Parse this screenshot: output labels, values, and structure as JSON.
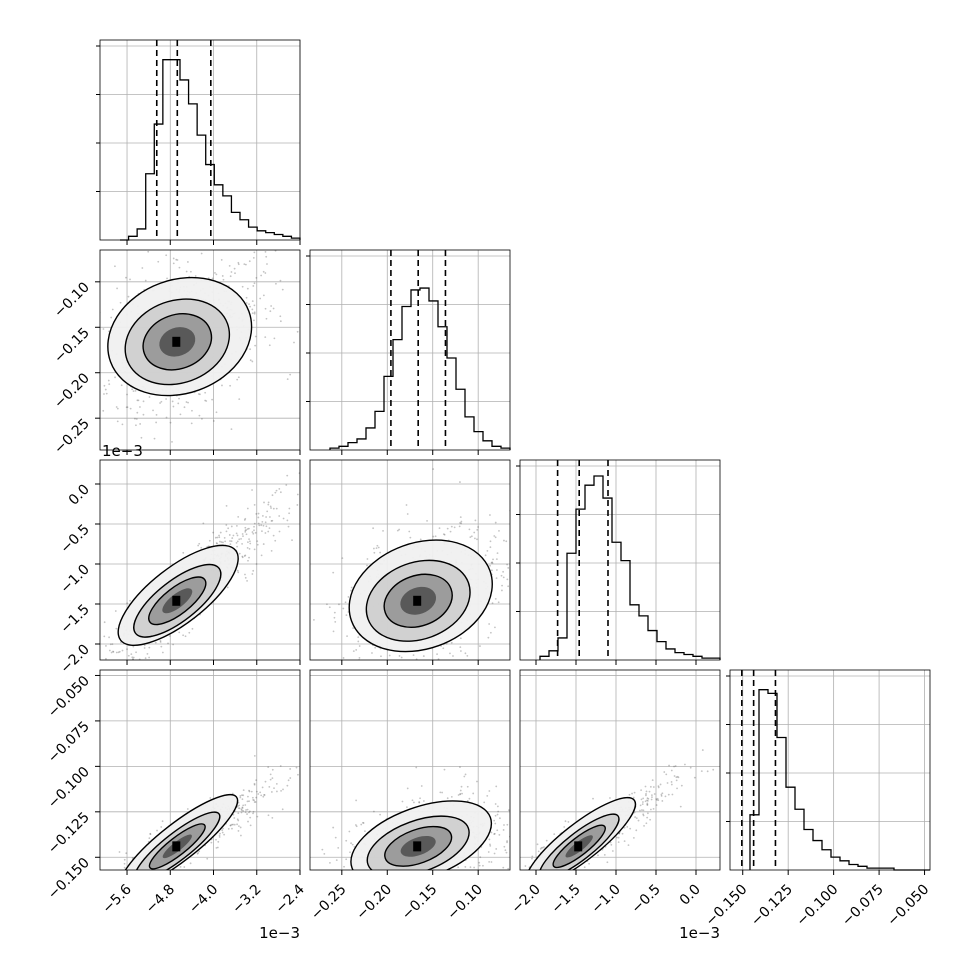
{
  "chart_data": {
    "type": "corner",
    "parameters": [
      {
        "range": [
          -6.1,
          -2.4
        ],
        "ticks": [
          -5.6,
          -4.8,
          -4.0,
          -3.2,
          -2.4
        ],
        "tick_labels": [
          "−5.6",
          "−4.8",
          "−4.0",
          "−3.2",
          "−2.4"
        ],
        "offset_label": "1e−3",
        "quantiles": [
          -5.05,
          -4.67,
          -4.05
        ],
        "histogram": [
          0,
          0.02,
          0.06,
          0.36,
          0.63,
          0.98,
          0.98,
          0.87,
          0.74,
          0.57,
          0.41,
          0.3,
          0.24,
          0.15,
          0.11,
          0.07,
          0.05,
          0.04,
          0.03,
          0.02,
          0.01
        ]
      },
      {
        "range": [
          -0.285,
          -0.065
        ],
        "ticks": [
          -0.25,
          -0.2,
          -0.15,
          -0.1
        ],
        "tick_labels": [
          "−0.25",
          "−0.20",
          "−0.15",
          "−0.10"
        ],
        "quantiles": [
          -0.196,
          -0.166,
          -0.136
        ],
        "histogram": [
          0.01,
          0.02,
          0.04,
          0.06,
          0.12,
          0.21,
          0.4,
          0.6,
          0.78,
          0.87,
          0.88,
          0.81,
          0.67,
          0.5,
          0.33,
          0.18,
          0.1,
          0.05,
          0.02,
          0.01
        ]
      },
      {
        "range": [
          -2.2,
          0.3
        ],
        "ticks": [
          -2.0,
          -1.5,
          -1.0,
          -0.5,
          0.0
        ],
        "tick_labels": [
          "−2.0",
          "−1.5",
          "−1.0",
          "−0.5",
          "0.0"
        ],
        "offset_label": "1e−3",
        "quantiles": [
          -1.73,
          -1.46,
          -1.1
        ],
        "histogram": [
          0.02,
          0.05,
          0.12,
          0.58,
          0.82,
          0.95,
          1.0,
          0.88,
          0.64,
          0.54,
          0.3,
          0.24,
          0.16,
          0.1,
          0.06,
          0.04,
          0.03,
          0.02,
          0.01,
          0.01
        ]
      },
      {
        "range": [
          -0.157,
          -0.047
        ],
        "ticks": [
          -0.15,
          -0.125,
          -0.1,
          -0.075,
          -0.05
        ],
        "tick_labels": [
          "−0.150",
          "−0.125",
          "−0.100",
          "−0.075",
          "−0.050"
        ],
        "quantiles": [
          -0.1505,
          -0.144,
          -0.132
        ],
        "histogram": [
          0.3,
          0.98,
          0.96,
          0.72,
          0.45,
          0.33,
          0.22,
          0.16,
          0.11,
          0.07,
          0.05,
          0.03,
          0.02,
          0.01,
          0.01,
          0.01,
          0.0,
          0.0,
          0.0,
          0.0
        ]
      }
    ],
    "grid": true,
    "histogram_style": "step",
    "quantile_lines": "dashed",
    "contours": "filled-density with 3 contour levels",
    "colors": {
      "line": "#000000",
      "grid": "#b0b0b0",
      "points": "#555555",
      "background": "#ffffff"
    }
  }
}
